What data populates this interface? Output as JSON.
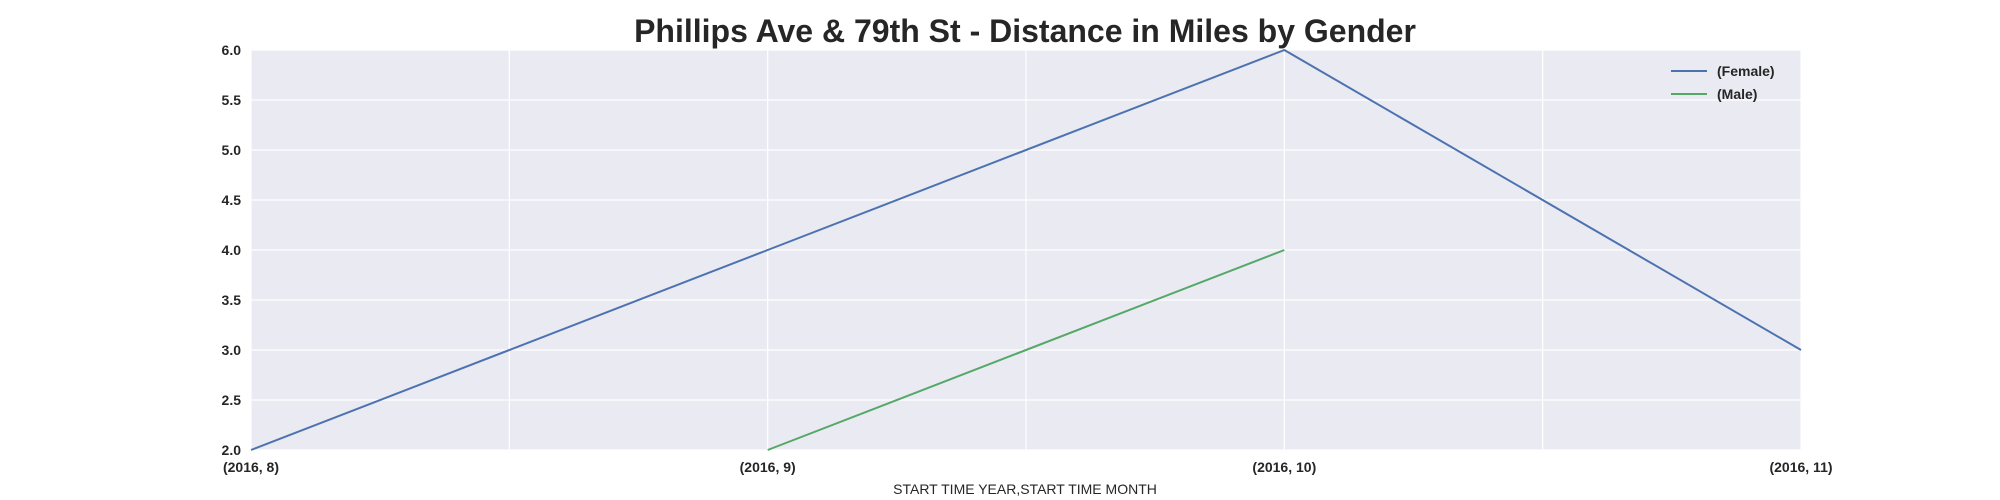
{
  "chart_data": {
    "type": "line",
    "title": "Phillips Ave & 79th St - Distance in Miles by Gender",
    "xlabel": "START TIME YEAR,START TIME MONTH",
    "ylabel": "",
    "categories": [
      "(2016, 8)",
      "(2016, 9)",
      "(2016, 10)",
      "(2016, 11)"
    ],
    "ylim": [
      2.0,
      6.0
    ],
    "yticks": [
      "2.0",
      "2.5",
      "3.0",
      "3.5",
      "4.0",
      "4.5",
      "5.0",
      "5.5",
      "6.0"
    ],
    "grid": true,
    "legend_position": "top-right",
    "series": [
      {
        "name": "(Female)",
        "color": "#4c72b0",
        "values": [
          2.0,
          4.0,
          6.0,
          3.0
        ]
      },
      {
        "name": "(Male)",
        "color": "#55a868",
        "values": [
          null,
          2.0,
          4.0,
          null
        ]
      }
    ],
    "background_color": "#eaeaf2",
    "grid_color": "#ffffff"
  }
}
